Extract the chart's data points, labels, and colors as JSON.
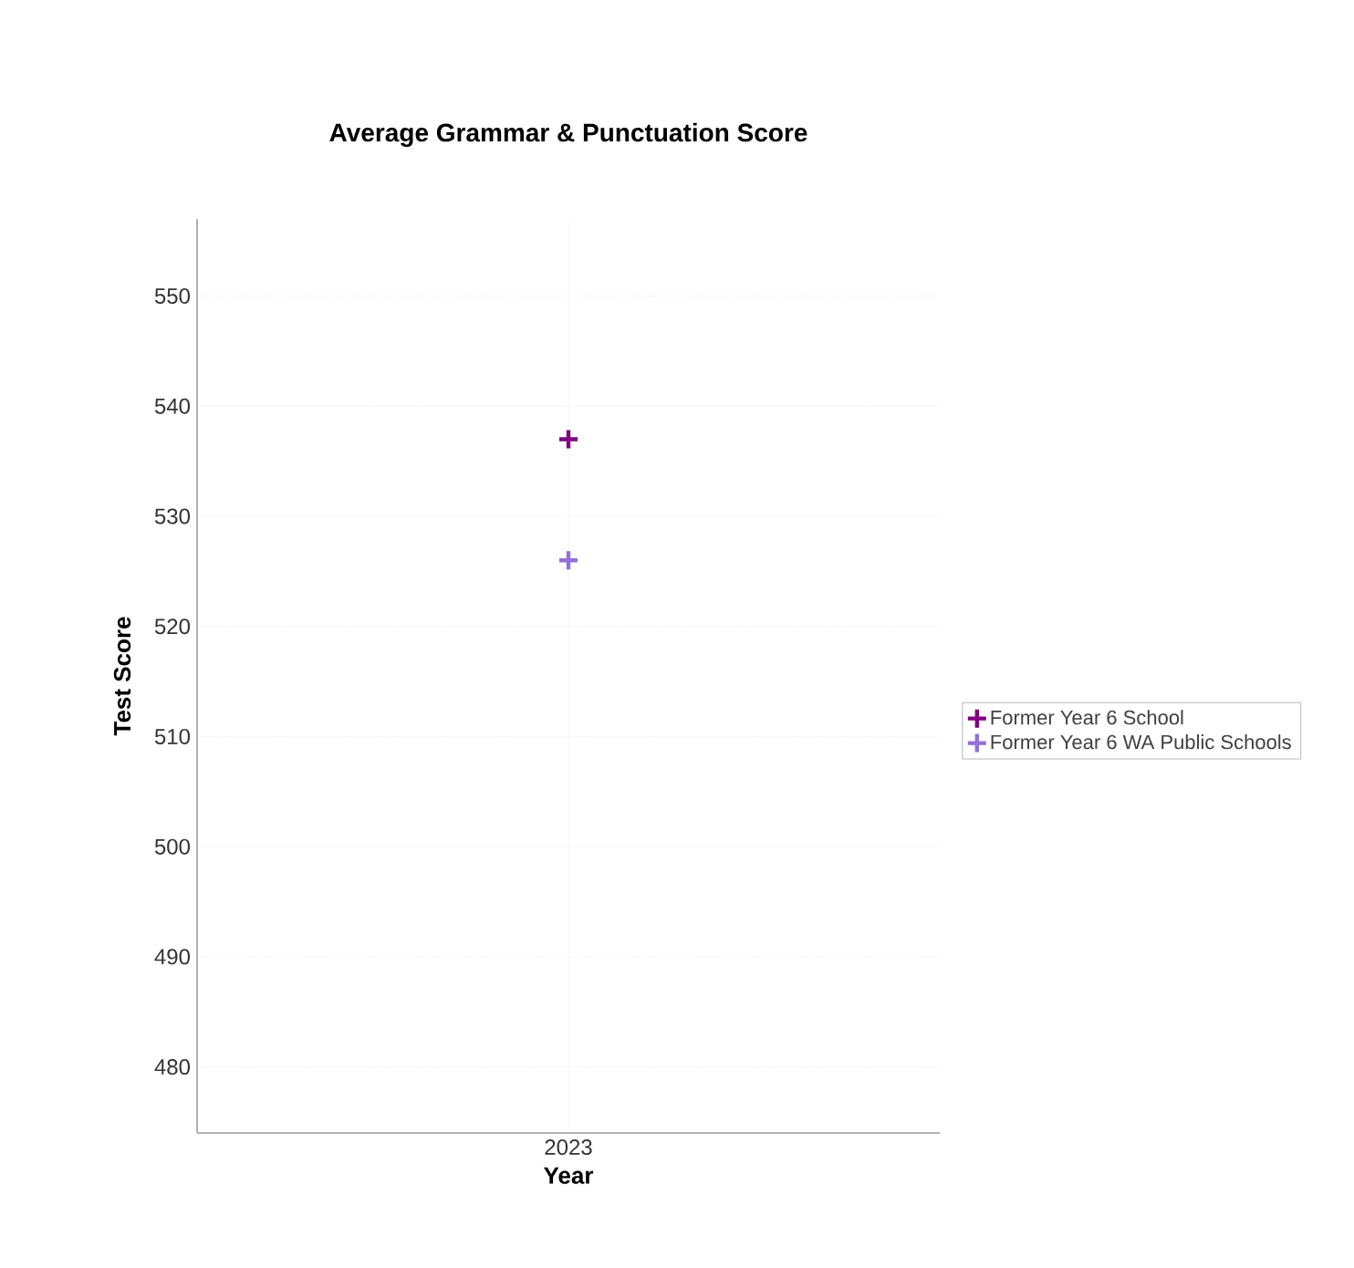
{
  "chart_data": {
    "type": "scatter",
    "title": "Average Grammar & Punctuation Score",
    "xlabel": "Year",
    "ylabel": "Test Score",
    "categories": [
      "2023"
    ],
    "series": [
      {
        "name": "Former Year 6 School",
        "color": "#800080",
        "values": [
          537
        ]
      },
      {
        "name": "Former Year 6 WA Public Schools",
        "color": "#9370db",
        "values": [
          526
        ]
      }
    ],
    "ylim": [
      474,
      557
    ],
    "yticks": [
      480,
      490,
      500,
      510,
      520,
      530,
      540,
      550
    ],
    "grid": true,
    "legend": "right",
    "marker": "cross"
  }
}
